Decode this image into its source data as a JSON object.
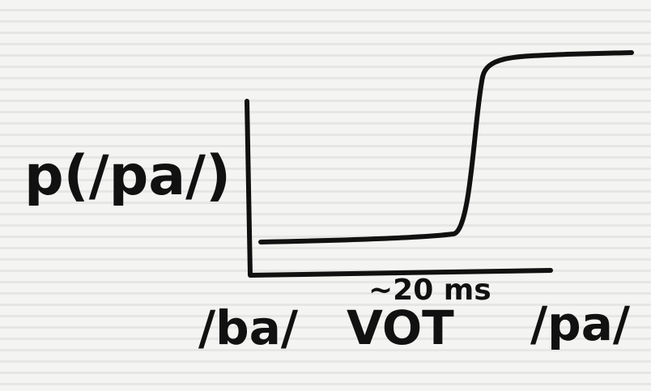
{
  "y_label": "p(/pa/)",
  "x_label": "VOT",
  "x_left_label": "/ba/",
  "x_right_label": "/pa/",
  "annotation": "~20 ms"
}
